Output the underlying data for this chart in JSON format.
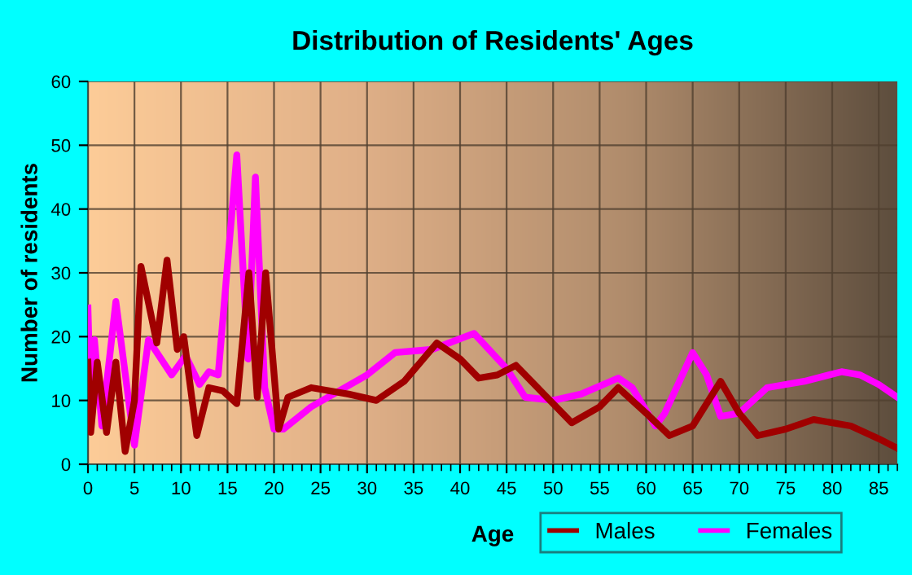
{
  "chart_data": {
    "type": "line",
    "title": "Distribution of Residents' Ages",
    "xlabel": "Age",
    "ylabel": "Number of residents",
    "xlim": [
      0,
      87
    ],
    "xticks": [
      0,
      5,
      10,
      15,
      20,
      25,
      30,
      35,
      40,
      45,
      50,
      55,
      60,
      65,
      70,
      75,
      80,
      85
    ],
    "ylim": [
      0,
      60
    ],
    "yticks": [
      0,
      10,
      20,
      30,
      40,
      50,
      60
    ],
    "grid": true,
    "legend": "bottom right",
    "marker": "none",
    "line_style": "solid",
    "series": [
      {
        "name": "Males",
        "color": "#a00000",
        "x": [
          0,
          0.3,
          1,
          2,
          3,
          4,
          5,
          5.7,
          7.4,
          8.5,
          9.6,
          10.3,
          11.7,
          13,
          14.5,
          16,
          17.3,
          18.2,
          19.1,
          20.5,
          21.5,
          24,
          28,
          31,
          34,
          37.5,
          40,
          42,
          44,
          46,
          49,
          52,
          55,
          57,
          60,
          62.5,
          65,
          68,
          70,
          72,
          75,
          78,
          82,
          85,
          87
        ],
        "values": [
          16,
          5,
          16,
          5,
          16,
          2,
          10,
          31,
          19,
          32,
          18,
          20,
          4.5,
          12,
          11.5,
          9.5,
          30,
          10.5,
          30,
          5.5,
          10.5,
          12,
          11,
          10,
          13,
          19,
          16.5,
          13.5,
          14,
          15.5,
          11,
          6.5,
          9,
          12,
          8,
          4.5,
          6,
          13,
          8,
          4.5,
          5.5,
          7,
          6,
          4,
          2.5
        ]
      },
      {
        "name": "Females",
        "color": "#ff00ff",
        "x": [
          0,
          0.3,
          0.7,
          1.5,
          3,
          5,
          6.5,
          9,
          10.5,
          12,
          13,
          14,
          16,
          17.2,
          18,
          19,
          20,
          21,
          24,
          30,
          33,
          37,
          41.5,
          45,
          47,
          50,
          53,
          57,
          58.5,
          61,
          62,
          65,
          66.5,
          68,
          70,
          73,
          77,
          81,
          83,
          85,
          87
        ],
        "values": [
          24.5,
          8,
          19.5,
          6,
          25.5,
          3,
          19.5,
          14,
          17,
          12.5,
          14.5,
          14,
          48.5,
          16.5,
          45,
          12,
          5.5,
          5.5,
          9,
          14,
          17.5,
          18,
          20.5,
          15,
          10.5,
          10,
          11,
          13.5,
          12,
          6,
          8,
          17.5,
          14,
          7.5,
          8,
          12,
          13,
          14.5,
          14,
          12.5,
          10.5
        ]
      }
    ]
  }
}
